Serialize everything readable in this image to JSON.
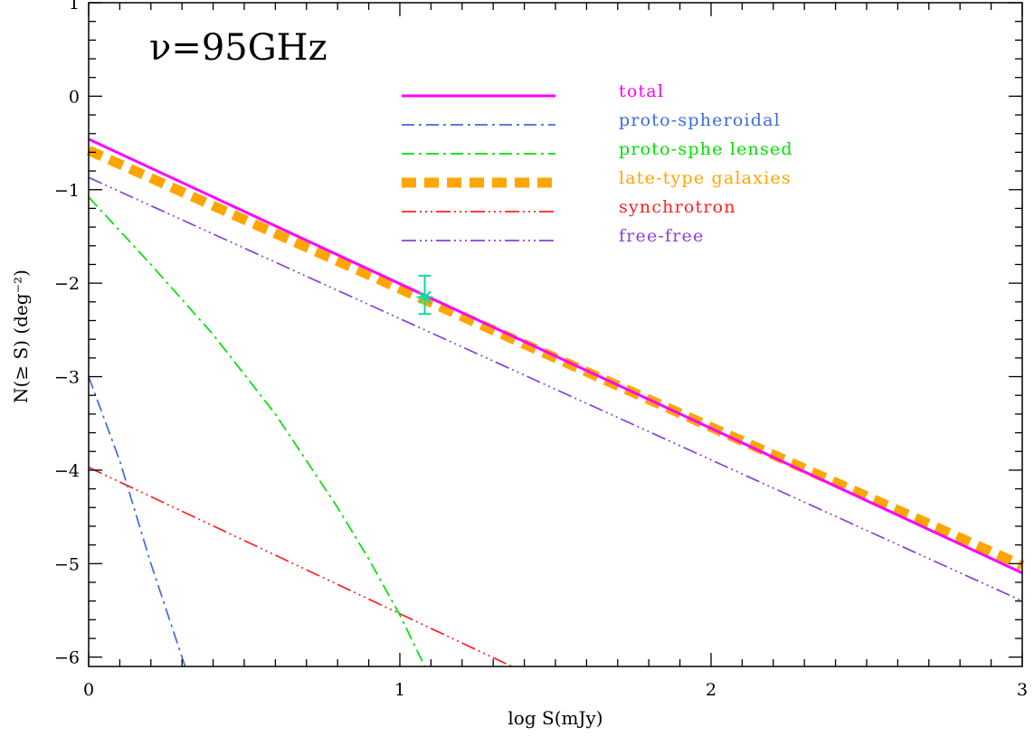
{
  "chart_data": {
    "type": "line",
    "annotation": "ν=95GHz",
    "xlabel": "log S(mJy)",
    "ylabel": "N(≥ S) (deg⁻²)",
    "xlim": [
      0,
      3
    ],
    "ylim": [
      -6.1,
      1
    ],
    "x_ticks": [
      0,
      1,
      2,
      3
    ],
    "y_ticks": [
      1,
      0,
      -1,
      -2,
      -3,
      -4,
      -5,
      -6
    ],
    "x_tick_labels": [
      "0",
      "1",
      "2",
      "3"
    ],
    "y_tick_labels": [
      "1",
      "0",
      "−1",
      "−2",
      "−3",
      "−4",
      "−5",
      "−6"
    ],
    "grid": false,
    "legend_position": "top-center",
    "series": [
      {
        "name": "late-type galaxies",
        "color": "#ffa500",
        "style": "thick-dash",
        "x": [
          0,
          3
        ],
        "y": [
          -0.58,
          -5.02
        ]
      },
      {
        "name": "free-free",
        "color": "#8b3fd9",
        "style": "dash-dot-dot-dot",
        "x": [
          0,
          3
        ],
        "y": [
          -0.87,
          -5.4
        ]
      },
      {
        "name": "synchrotron",
        "color": "#ff2020",
        "style": "dash-dot-dot-dot",
        "x": [
          0,
          1.36
        ],
        "y": [
          -3.97,
          -6.1
        ]
      },
      {
        "name": "proto-spheroidal",
        "color": "#4169e1",
        "style": "dash-dot",
        "x": [
          0,
          0.1,
          0.2,
          0.31
        ],
        "y": [
          -3.0,
          -3.9,
          -5.0,
          -6.1
        ]
      },
      {
        "name": "proto-sphe lensed",
        "color": "#00e000",
        "style": "dash-dot",
        "x": [
          0,
          0.2,
          0.4,
          0.6,
          0.8,
          0.9,
          1.0,
          1.08
        ],
        "y": [
          -1.08,
          -1.8,
          -2.55,
          -3.4,
          -4.4,
          -4.95,
          -5.55,
          -6.1
        ]
      },
      {
        "name": "total",
        "color": "#ff00ff",
        "style": "solid",
        "x": [
          0,
          3
        ],
        "y": [
          -0.46,
          -5.1
        ]
      }
    ],
    "data_point": {
      "x": 1.08,
      "y": -2.15,
      "y_err_low": -2.33,
      "y_err_high": -1.92,
      "color": "#00e0a0"
    }
  }
}
